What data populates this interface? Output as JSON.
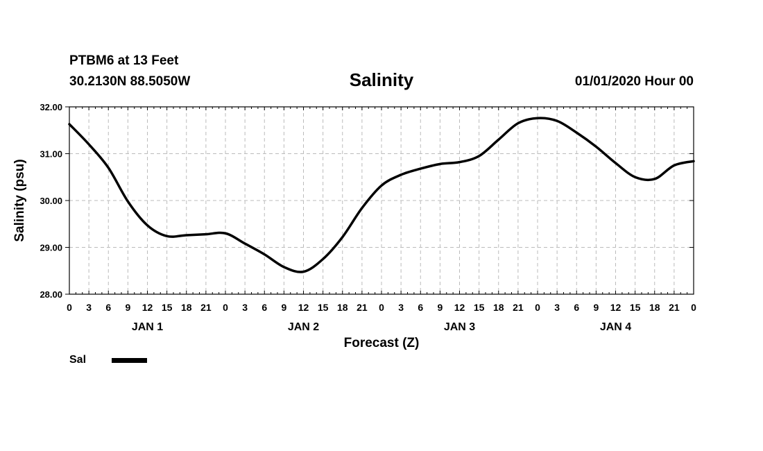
{
  "header": {
    "station": "PTBM6 at 13 Feet",
    "coords": "30.2130N 88.5050W",
    "title": "Salinity",
    "datetime": "01/01/2020 Hour 00"
  },
  "chart_data": {
    "type": "line",
    "title": "Salinity",
    "xlabel": "Forecast (Z)",
    "ylabel": "Salinity (psu)",
    "ylim": [
      28.0,
      32.0
    ],
    "xlim": [
      0,
      96
    ],
    "yticks": [
      "28.00",
      "29.00",
      "30.00",
      "31.00",
      "32.00"
    ],
    "yticks_values": [
      28,
      29,
      30,
      31,
      32
    ],
    "xtick_labels": [
      "0",
      "3",
      "6",
      "9",
      "12",
      "15",
      "18",
      "21",
      "0",
      "3",
      "6",
      "9",
      "12",
      "15",
      "18",
      "21",
      "0",
      "3",
      "6",
      "9",
      "12",
      "15",
      "18",
      "21",
      "0",
      "3",
      "6",
      "9",
      "12",
      "15",
      "18",
      "21",
      "0"
    ],
    "day_labels": [
      {
        "label": "JAN 1",
        "hour": 12
      },
      {
        "label": "JAN 2",
        "hour": 36
      },
      {
        "label": "JAN 3",
        "hour": 60
      },
      {
        "label": "JAN 4",
        "hour": 84
      }
    ],
    "grid": true,
    "legend_position": "bottom-left",
    "series": [
      {
        "name": "Sal",
        "color": "#000000",
        "x": [
          0,
          3,
          6,
          9,
          12,
          15,
          18,
          21,
          24,
          27,
          30,
          33,
          36,
          39,
          42,
          45,
          48,
          51,
          54,
          57,
          60,
          63,
          66,
          69,
          72,
          75,
          78,
          81,
          84,
          87,
          90,
          93,
          96
        ],
        "values": [
          31.63,
          31.2,
          30.7,
          29.98,
          29.47,
          29.24,
          29.26,
          29.28,
          29.3,
          29.08,
          28.85,
          28.58,
          28.48,
          28.75,
          29.22,
          29.84,
          30.32,
          30.55,
          30.68,
          30.78,
          30.82,
          30.95,
          31.3,
          31.65,
          31.76,
          31.7,
          31.45,
          31.15,
          30.8,
          30.5,
          30.46,
          30.75,
          30.84
        ]
      }
    ]
  },
  "legend": {
    "label": "Sal"
  }
}
